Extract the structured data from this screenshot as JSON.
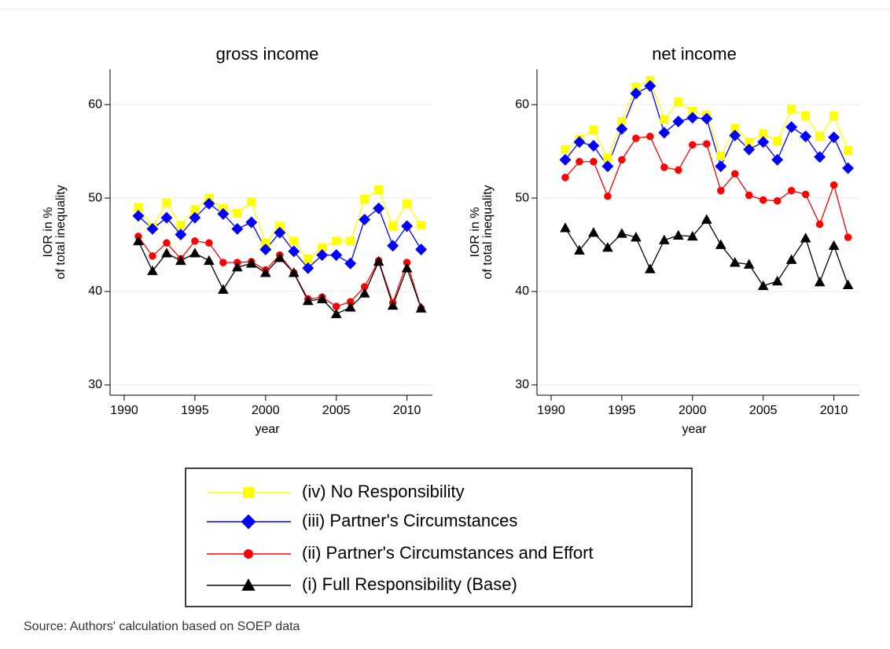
{
  "chart_data": [
    {
      "type": "line",
      "title": "gross income",
      "xlabel": "year",
      "ylabel": [
        "IOR in %",
        "of total inequality"
      ],
      "x": [
        1991,
        1992,
        1993,
        1994,
        1995,
        1996,
        1997,
        1998,
        1999,
        2000,
        2001,
        2002,
        2003,
        2004,
        2005,
        2006,
        2007,
        2008,
        2009,
        2010,
        2011
      ],
      "xlim": [
        1989,
        2011.8
      ],
      "xticks": [
        1990,
        1995,
        2000,
        2005,
        2010
      ],
      "ylim": [
        28.9,
        63.8
      ],
      "yticks": [
        30,
        40,
        50,
        60
      ],
      "grid": true,
      "series": [
        {
          "name": "(iv) No Responsibility",
          "color": "#ffff00",
          "marker": "square",
          "values": [
            49.0,
            46.9,
            49.5,
            47.1,
            48.8,
            50.0,
            48.9,
            48.4,
            49.6,
            45.2,
            47.0,
            45.4,
            43.5,
            44.7,
            45.4,
            45.4,
            49.9,
            50.9,
            47.0,
            49.4,
            47.1
          ]
        },
        {
          "name": "(iii) Partner's Circumstances",
          "color": "#0000ff",
          "marker": "diamond",
          "values": [
            48.1,
            46.7,
            47.9,
            46.1,
            47.9,
            49.4,
            48.3,
            46.7,
            47.4,
            44.5,
            46.3,
            44.3,
            42.5,
            43.9,
            43.9,
            43.0,
            47.7,
            48.9,
            44.9,
            47.0,
            44.5
          ]
        },
        {
          "name": "(ii) Partner's Circumstances and Effort",
          "color": "#ff0000",
          "marker": "circle",
          "values": [
            45.9,
            43.8,
            45.2,
            43.5,
            45.4,
            45.2,
            43.1,
            43.1,
            43.2,
            42.3,
            43.9,
            42.0,
            39.2,
            39.4,
            38.4,
            38.9,
            40.5,
            43.3,
            38.8,
            43.1,
            38.2
          ]
        },
        {
          "name": "(i) Full Responsibility (Base)",
          "color": "#000000",
          "marker": "triangle",
          "values": [
            45.4,
            42.2,
            44.1,
            43.3,
            44.1,
            43.3,
            40.2,
            42.6,
            43.0,
            42.0,
            43.6,
            42.0,
            39.0,
            39.2,
            37.6,
            38.3,
            39.8,
            43.2,
            38.5,
            42.5,
            38.2
          ]
        }
      ]
    },
    {
      "type": "line",
      "title": "net income",
      "xlabel": "year",
      "ylabel": [
        "IOR in %",
        "of total inequality"
      ],
      "x": [
        1991,
        1992,
        1993,
        1994,
        1995,
        1996,
        1997,
        1998,
        1999,
        2000,
        2001,
        2002,
        2003,
        2004,
        2005,
        2006,
        2007,
        2008,
        2009,
        2010,
        2011
      ],
      "xlim": [
        1989,
        2011.8
      ],
      "xticks": [
        1990,
        1995,
        2000,
        2005,
        2010
      ],
      "ylim": [
        28.9,
        63.8
      ],
      "yticks": [
        30,
        40,
        50,
        60
      ],
      "grid": true,
      "series": [
        {
          "name": "(iv) No Responsibility",
          "color": "#ffff00",
          "marker": "square",
          "values": [
            55.2,
            56.3,
            57.3,
            54.3,
            58.2,
            61.9,
            62.6,
            58.4,
            60.3,
            59.3,
            58.9,
            54.5,
            57.5,
            56.0,
            56.9,
            56.1,
            59.5,
            58.8,
            56.6,
            58.8,
            55.1
          ]
        },
        {
          "name": "(iii) Partner's Circumstances",
          "color": "#0000ff",
          "marker": "diamond",
          "values": [
            54.1,
            56.0,
            55.6,
            53.4,
            57.4,
            61.2,
            62.0,
            57.0,
            58.2,
            58.6,
            58.5,
            53.4,
            56.7,
            55.2,
            56.0,
            54.1,
            57.6,
            56.6,
            54.4,
            56.5,
            53.2
          ]
        },
        {
          "name": "(ii) Partner's Circumstances and Effort",
          "color": "#ff0000",
          "marker": "circle",
          "values": [
            52.2,
            53.9,
            53.9,
            50.2,
            54.1,
            56.4,
            56.6,
            53.3,
            53.0,
            55.7,
            55.8,
            50.8,
            52.6,
            50.3,
            49.8,
            49.7,
            50.8,
            50.4,
            47.2,
            51.4,
            45.8
          ]
        },
        {
          "name": "(i) Full Responsibility (Base)",
          "color": "#000000",
          "marker": "triangle",
          "values": [
            46.8,
            44.4,
            46.3,
            44.7,
            46.2,
            45.8,
            42.4,
            45.5,
            46.0,
            45.9,
            47.7,
            45.0,
            43.1,
            42.9,
            40.6,
            41.1,
            43.4,
            45.7,
            41.0,
            44.9,
            40.7
          ]
        }
      ]
    }
  ],
  "source": "Source: Authors' calculation based on SOEP data"
}
